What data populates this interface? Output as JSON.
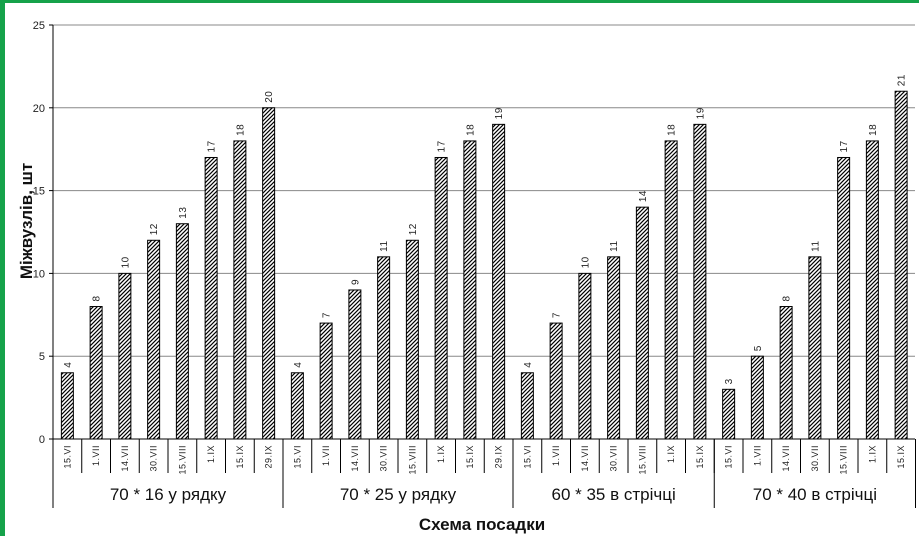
{
  "chart_data": {
    "type": "bar",
    "title": "",
    "xlabel": "Схема посадки",
    "ylabel": "Міжвузлів, шт",
    "ylim": [
      0,
      25
    ],
    "yticks": [
      0,
      5,
      10,
      15,
      20,
      25
    ],
    "grid": true,
    "legend": "none",
    "bar_fill": "hatched",
    "colors": {
      "frame": "#15a24a",
      "bar_stroke": "#000000",
      "grid": "#888888"
    },
    "groups": [
      {
        "name": "70 * 16 у рядку",
        "categories": [
          "15.VI",
          "1.VII",
          "14.VII",
          "30.VII",
          "15.VIII",
          "1.IX",
          "15.IX",
          "29.IX"
        ],
        "values": [
          4,
          8,
          10,
          12,
          13,
          17,
          18,
          20
        ]
      },
      {
        "name": "70 * 25 у рядку",
        "categories": [
          "15.VI",
          "1.VII",
          "14.VII",
          "30.VII",
          "15.VIII",
          "1.IX",
          "15.IX",
          "29.IX"
        ],
        "values": [
          4,
          7,
          9,
          11,
          12,
          17,
          18,
          19
        ]
      },
      {
        "name": "60 * 35 в стрічці",
        "categories": [
          "15.VI",
          "1.VII",
          "14.VII",
          "30.VII",
          "15.VIII",
          "1.IX",
          "15.IX"
        ],
        "values": [
          4,
          7,
          10,
          11,
          14,
          18,
          19
        ]
      },
      {
        "name": "70 * 40 в стрічці",
        "categories": [
          "15.VI",
          "1.VII",
          "14.VII",
          "30.VII",
          "15.VIII",
          "1.IX",
          "15.IX"
        ],
        "values": [
          3,
          5,
          8,
          11,
          17,
          18,
          21
        ]
      }
    ]
  }
}
